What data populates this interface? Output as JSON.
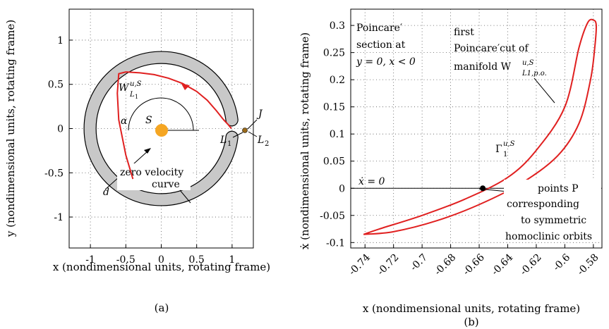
{
  "panels": {
    "a": {
      "caption": "(a)",
      "xlabel": "x (nondimensional units, rotating frame)",
      "ylabel": "y (nondimensional units, rotating frame)",
      "annotations": {
        "manifold": "W",
        "manifold_sup": "u,S",
        "manifold_sub": "L",
        "manifold_subsub": "1",
        "alpha": "α",
        "sun": "S",
        "J": "J",
        "L1": "L",
        "L1_sub": "1",
        "L2": "L",
        "L2_sub": "2",
        "d": "d",
        "zv1": "zero velocity",
        "zv2": "curve"
      }
    },
    "b": {
      "caption": "(b)",
      "xlabel": "x (nondimensional units, rotating frame)",
      "ylabel": "ẋ (nondimensional units, rotating frame)",
      "annotations": {
        "section1": "Poincare′",
        "section2": "section at",
        "section3": "y = 0, x < 0",
        "first1": "first",
        "first2": "Poincare′cut of",
        "first3": "manifold W",
        "first3_sup": "u,S",
        "first3_sub": "L1,p.o.",
        "gamma": "Γ",
        "gamma_sup": "u,S",
        "gamma_sub": "1",
        "xdot0": "ẋ = 0",
        "pts1": "points P",
        "pts2": "corresponding",
        "pts3": "to symmetric",
        "pts4": "homoclinic orbits"
      }
    }
  },
  "colors": {
    "manifold": "#e02020",
    "sun": "#f5a623",
    "region": "#c8c8c8",
    "L1point": "#9a6a1a"
  },
  "chart_data": [
    {
      "type": "line",
      "panel": "a",
      "xlim": [
        -1.3,
        1.3
      ],
      "ylim": [
        -1.35,
        1.35
      ],
      "xticks": [
        -1,
        -0.5,
        0,
        0.5,
        1
      ],
      "xticklabels": [
        "-1",
        "-0.5",
        "0",
        "0.5",
        "1"
      ],
      "yticks": [
        1,
        0.5,
        0,
        -0.5,
        -1
      ],
      "yticklabels": [
        "1",
        "0.5",
        "0",
        "-0.5",
        "-1"
      ],
      "grid": true,
      "forbidden_region": {
        "inner_radius": 0.92,
        "outer_radius": 1.09,
        "neck_half_angle_deg": 7
      },
      "manifold_path": {
        "x": [
          -0.4,
          -0.5,
          -0.6,
          -0.62,
          -0.6,
          -0.5,
          -0.3,
          -0.1,
          0.1,
          0.3,
          0.5,
          0.65,
          0.78,
          0.88,
          0.95,
          0.99
        ],
        "y": [
          -0.57,
          -0.3,
          0.1,
          0.4,
          0.62,
          0.64,
          0.63,
          0.61,
          0.57,
          0.51,
          0.42,
          0.32,
          0.2,
          0.1,
          0.04,
          0.0
        ]
      },
      "sun": {
        "x": 0,
        "y": 0
      },
      "L1": {
        "x": 0.99,
        "y": 0
      }
    },
    {
      "type": "line",
      "panel": "b",
      "xlim": [
        -0.75,
        -0.574
      ],
      "ylim": [
        -0.11,
        0.33
      ],
      "xticks": [
        -0.74,
        -0.72,
        -0.7,
        -0.68,
        -0.66,
        -0.64,
        -0.62,
        -0.6,
        -0.58
      ],
      "xticklabels": [
        "-0.74",
        "-0.72",
        "-0.7",
        "-0.68",
        "-0.66",
        "-0.64",
        "-0.62",
        "-0.6",
        "-0.58"
      ],
      "yticks": [
        0.3,
        0.25,
        0.2,
        0.15,
        0.1,
        0.05,
        0,
        -0.05,
        -0.1
      ],
      "yticklabels": [
        "0.3",
        "0.25",
        "0.2",
        "0.15",
        "0.1",
        "0.05",
        "0",
        "-0.05",
        "-0.1"
      ],
      "grid": true,
      "curve": {
        "x": [
          -0.741,
          -0.72,
          -0.69,
          -0.66,
          -0.63,
          -0.605,
          -0.59,
          -0.582,
          -0.579,
          -0.578,
          -0.58,
          -0.584,
          -0.59,
          -0.6,
          -0.62,
          -0.64,
          -0.67,
          -0.7,
          -0.73,
          -0.741
        ],
        "y": [
          -0.085,
          -0.08,
          -0.06,
          -0.03,
          0.01,
          0.06,
          0.12,
          0.2,
          0.26,
          0.3,
          0.31,
          0.305,
          0.26,
          0.15,
          0.07,
          0.02,
          -0.02,
          -0.05,
          -0.075,
          -0.085
        ]
      },
      "points_P": [
        {
          "x": -0.6575,
          "y": 0
        },
        {
          "x": -0.6305,
          "y": 0
        }
      ]
    }
  ]
}
